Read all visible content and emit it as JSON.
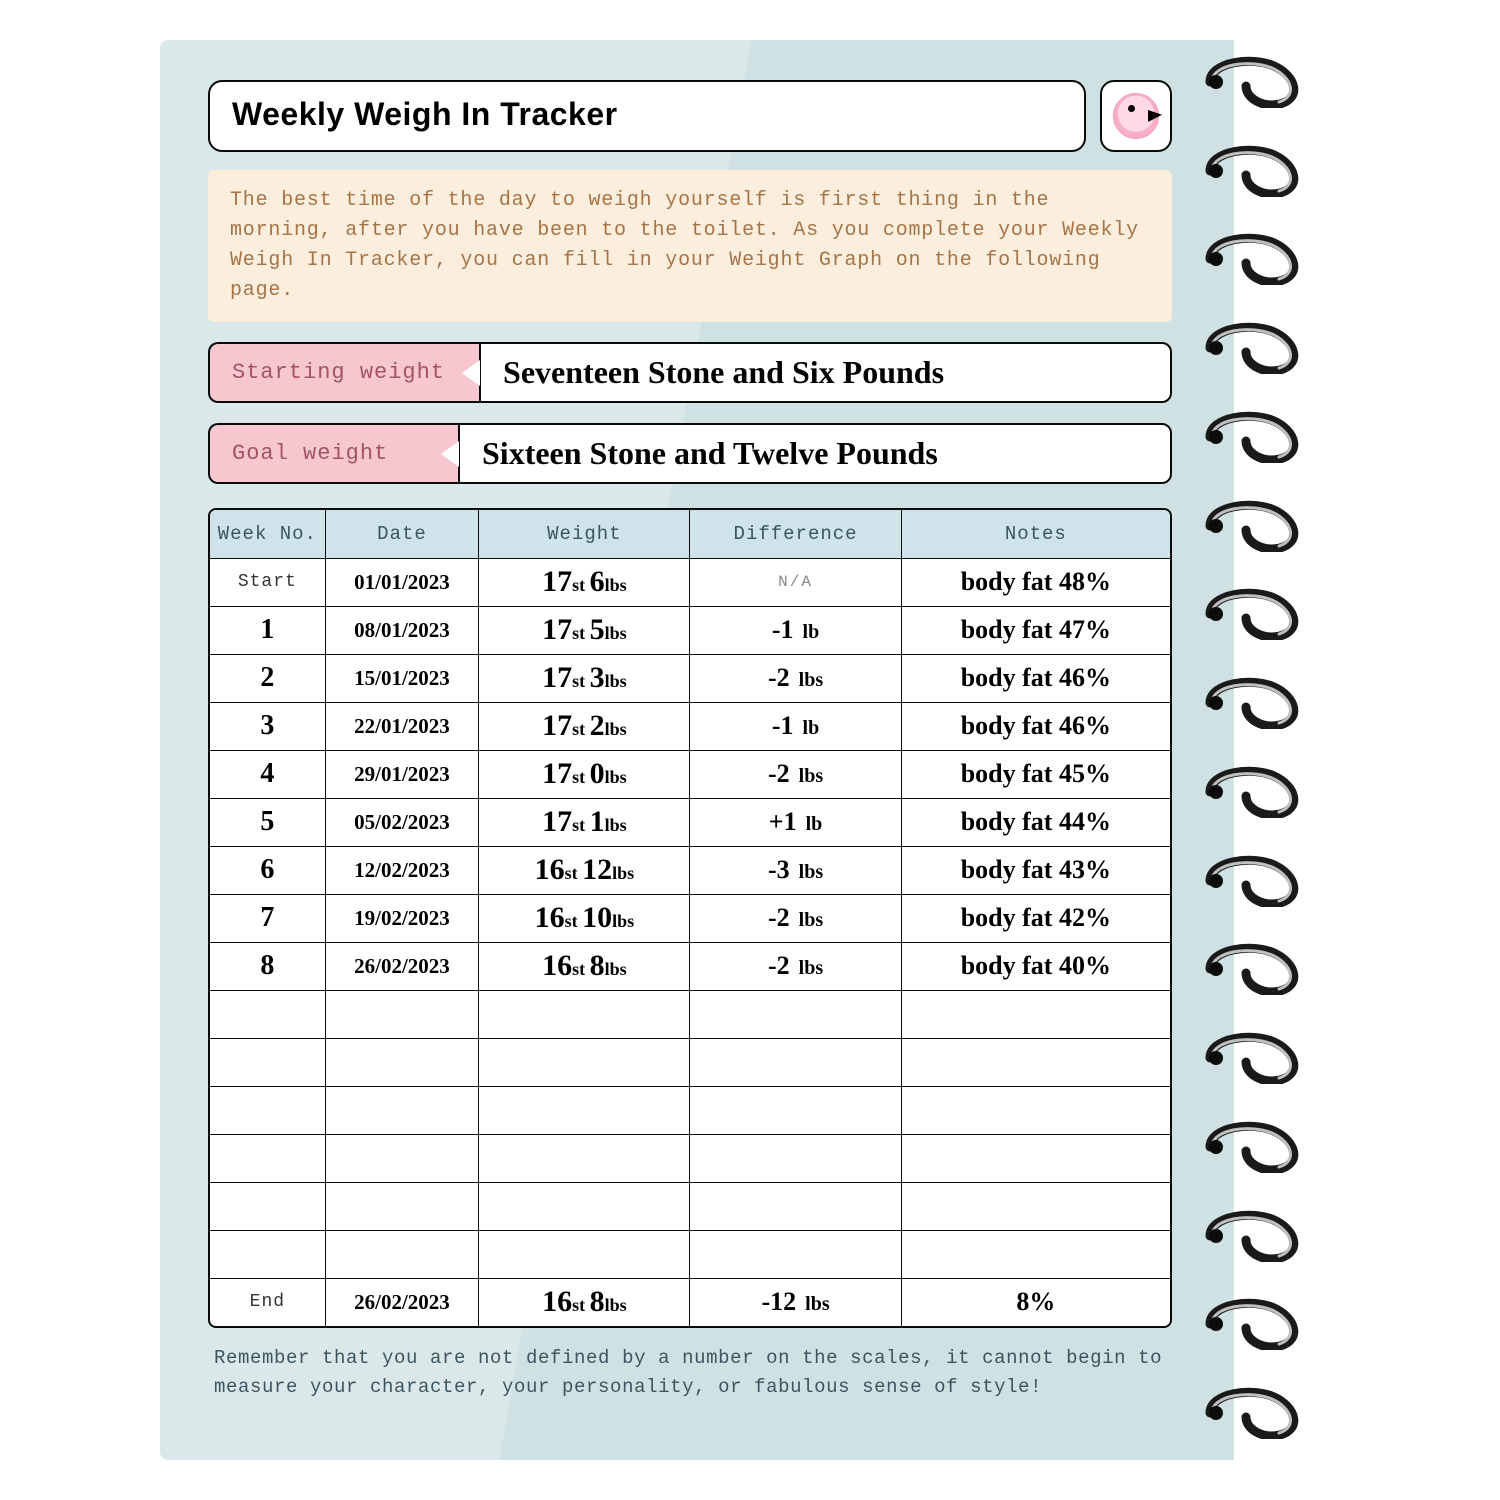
{
  "title": "Weekly Weigh In Tracker",
  "banner_text": "The best time of the day to weigh yourself is first thing in the morning, after you have been to the toilet. As you complete your Weekly Weigh In Tracker, you can fill in your Weight Graph on the following page.",
  "starting_weight": {
    "label": "Starting weight",
    "value": "Seventeen Stone and Six Pounds"
  },
  "goal_weight": {
    "label": "Goal weight",
    "value": "Sixteen Stone and Twelve Pounds"
  },
  "columns": [
    "Week No.",
    "Date",
    "Weight",
    "Difference",
    "Notes"
  ],
  "column_widths_pct": [
    12,
    16,
    22,
    22,
    28
  ],
  "rows": [
    {
      "week": "Start",
      "week_style": "light",
      "date": "01/01/2023",
      "wt_st": "17",
      "wt_lbs": "6",
      "diff_num": "",
      "diff_unit": "",
      "diff_raw": "N/A",
      "notes": "body fat 48%"
    },
    {
      "week": "1",
      "week_style": "bold",
      "date": "08/01/2023",
      "wt_st": "17",
      "wt_lbs": "5",
      "diff_num": "-1",
      "diff_unit": "lb",
      "notes": "body fat 47%"
    },
    {
      "week": "2",
      "week_style": "bold",
      "date": "15/01/2023",
      "wt_st": "17",
      "wt_lbs": "3",
      "diff_num": "-2",
      "diff_unit": "lbs",
      "notes": "body fat 46%"
    },
    {
      "week": "3",
      "week_style": "bold",
      "date": "22/01/2023",
      "wt_st": "17",
      "wt_lbs": "2",
      "diff_num": "-1",
      "diff_unit": "lb",
      "notes": "body fat 46%"
    },
    {
      "week": "4",
      "week_style": "bold",
      "date": "29/01/2023",
      "wt_st": "17",
      "wt_lbs": "0",
      "diff_num": "-2",
      "diff_unit": "lbs",
      "notes": "body fat 45%"
    },
    {
      "week": "5",
      "week_style": "bold",
      "date": "05/02/2023",
      "wt_st": "17",
      "wt_lbs": "1",
      "diff_num": "+1",
      "diff_unit": "lb",
      "notes": "body fat 44%"
    },
    {
      "week": "6",
      "week_style": "bold",
      "date": "12/02/2023",
      "wt_st": "16",
      "wt_lbs": "12",
      "diff_num": "-3",
      "diff_unit": "lbs",
      "notes": "body fat 43%"
    },
    {
      "week": "7",
      "week_style": "bold",
      "date": "19/02/2023",
      "wt_st": "16",
      "wt_lbs": "10",
      "diff_num": "-2",
      "diff_unit": "lbs",
      "notes": "body fat 42%"
    },
    {
      "week": "8",
      "week_style": "bold",
      "date": "26/02/2023",
      "wt_st": "16",
      "wt_lbs": "8",
      "diff_num": "-2",
      "diff_unit": "lbs",
      "notes": "body fat 40%"
    },
    {
      "empty": true
    },
    {
      "empty": true
    },
    {
      "empty": true
    },
    {
      "empty": true
    },
    {
      "empty": true
    },
    {
      "empty": true
    },
    {
      "week": "End",
      "week_style": "light",
      "date": "26/02/2023",
      "wt_st": "16",
      "wt_lbs": "8",
      "diff_num": "-12",
      "diff_unit": "lbs",
      "notes": "8%"
    }
  ],
  "footer_text": "Remember that you are not defined by a number on the scales, it cannot begin to measure your character, your personality, or fabulous sense of style!",
  "colors": {
    "page_bg_light": "#dae8e9",
    "page_bg_dark": "#cfe1e2",
    "banner_bg": "#fbeedd",
    "banner_text": "#a67449",
    "label_bg": "#f7c7cf",
    "label_text": "#a35464",
    "header_bg": "#cee3ea",
    "header_text": "#3c5560",
    "border": "#0b0b0b"
  },
  "typography": {
    "title_fontsize": 32,
    "banner_fontsize": 20,
    "value_fontsize": 32,
    "header_fontsize": 19,
    "cell_fontsize": 26,
    "footer_fontsize": 19
  },
  "spiral_ring_count": 16
}
